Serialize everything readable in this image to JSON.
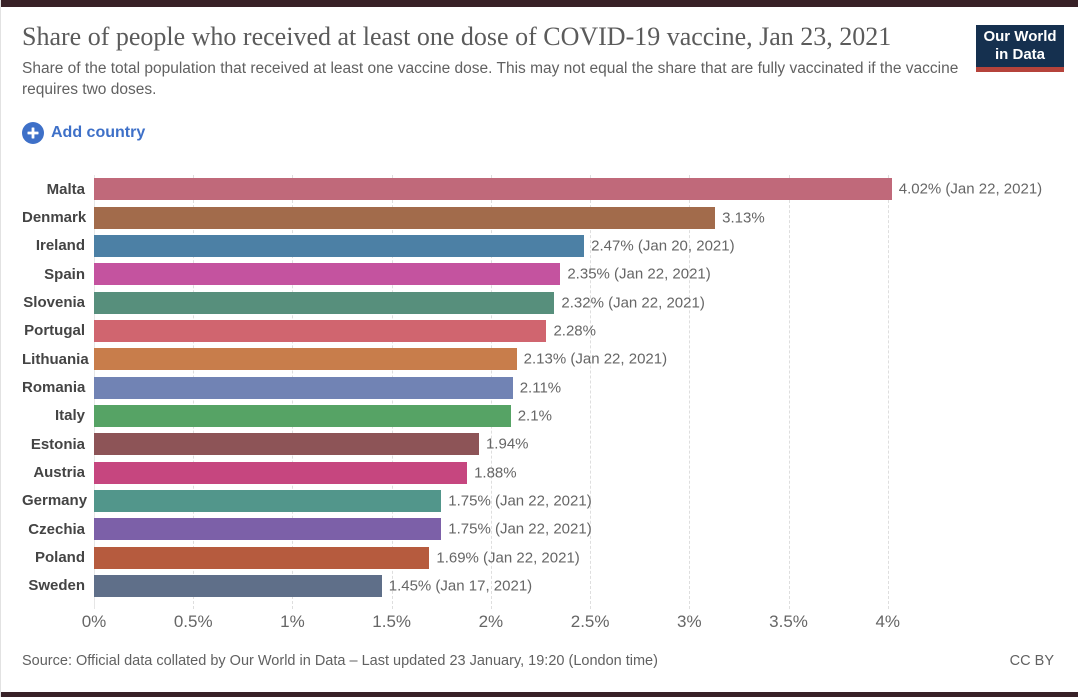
{
  "page": {
    "title": "Share of people who received at least one dose of COVID-19 vaccine, Jan 23, 2021",
    "subtitle": "Share of the total population that received at least one vaccine dose. This may not equal the share that are fully vaccinated if the vaccine requires two doses.",
    "logo": {
      "line1": "Our World",
      "line2": "in Data"
    },
    "add_country_label": "Add country",
    "footer": {
      "source": "Source: Official data collated by Our World in Data – Last updated 23 January, 19:20 (London time)",
      "license": "CC BY"
    }
  },
  "chart_data": {
    "type": "bar",
    "orientation": "horizontal",
    "title": "Share of people who received at least one dose of COVID-19 vaccine, Jan 23, 2021",
    "categories": [
      "Malta",
      "Denmark",
      "Ireland",
      "Spain",
      "Slovenia",
      "Portugal",
      "Lithuania",
      "Romania",
      "Italy",
      "Estonia",
      "Austria",
      "Germany",
      "Czechia",
      "Poland",
      "Sweden"
    ],
    "values": [
      4.02,
      3.13,
      2.47,
      2.35,
      2.32,
      2.28,
      2.13,
      2.11,
      2.1,
      1.94,
      1.88,
      1.75,
      1.75,
      1.69,
      1.45
    ],
    "value_labels": [
      "4.02% (Jan 22, 2021)",
      "3.13%",
      "2.47% (Jan 20, 2021)",
      "2.35% (Jan 22, 2021)",
      "2.32% (Jan 22, 2021)",
      "2.28%",
      "2.13% (Jan 22, 2021)",
      "2.11%",
      "2.1%",
      "1.94%",
      "1.88%",
      "1.75% (Jan 22, 2021)",
      "1.75% (Jan 22, 2021)",
      "1.69% (Jan 22, 2021)",
      "1.45% (Jan 17, 2021)"
    ],
    "bar_colors": [
      "#c0697a",
      "#a26b4b",
      "#4c80a5",
      "#c4539f",
      "#578f7c",
      "#d0656f",
      "#c87d4b",
      "#7183b4",
      "#56a365",
      "#8d5457",
      "#c6467f",
      "#52968b",
      "#7c60a8",
      "#b65b3e",
      "#5f6f89"
    ],
    "x_ticks": [
      "0%",
      "0.5%",
      "1%",
      "1.5%",
      "2%",
      "2.5%",
      "3%",
      "3.5%",
      "4%"
    ],
    "x_tick_values": [
      0,
      0.5,
      1,
      1.5,
      2,
      2.5,
      3,
      3.5,
      4
    ],
    "xlim": [
      0,
      4.5
    ],
    "grid": "dashed-vertical"
  }
}
